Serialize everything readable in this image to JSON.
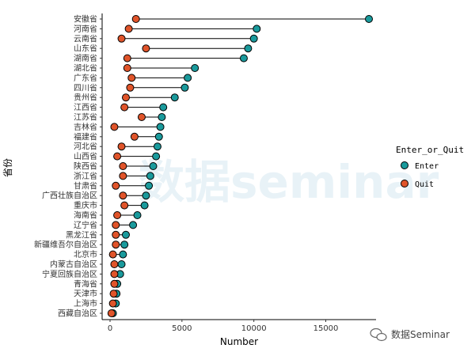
{
  "chart_data": {
    "type": "dumbbell",
    "xlabel": "Number",
    "ylabel": "省份",
    "xlim": [
      0,
      18400
    ],
    "xticks": [
      0,
      5000,
      10000,
      15000
    ],
    "grid": false,
    "legend": {
      "title": "Enter_or_Quit",
      "placement": "right",
      "entries": [
        {
          "name": "Enter",
          "color": "#1a9a9c"
        },
        {
          "name": "Quit",
          "color": "#e0542a"
        }
      ]
    },
    "categories": [
      "安徽省",
      "河南省",
      "云南省",
      "山东省",
      "湖南省",
      "湖北省",
      "广东省",
      "四川省",
      "贵州省",
      "江西省",
      "江苏省",
      "吉林省",
      "福建省",
      "河北省",
      "山西省",
      "陕西省",
      "浙江省",
      "甘肃省",
      "广西壮族自治区",
      "重庆市",
      "海南省",
      "辽宁省",
      "黑龙江省",
      "新疆维吾尔自治区",
      "北京市",
      "内蒙古自治区",
      "宁夏回族自治区",
      "青海省",
      "天津市",
      "上海市",
      "西藏自治区"
    ],
    "series": [
      {
        "name": "Enter",
        "values": [
          18000,
          10200,
          10000,
          9600,
          9300,
          5900,
          5400,
          5200,
          4500,
          3700,
          3600,
          3500,
          3400,
          3300,
          3200,
          3000,
          2800,
          2700,
          2500,
          2400,
          1900,
          1600,
          1100,
          1000,
          900,
          800,
          700,
          500,
          450,
          400,
          200
        ]
      },
      {
        "name": "Quit",
        "values": [
          1800,
          1300,
          800,
          2500,
          1200,
          1200,
          1500,
          1400,
          1100,
          1000,
          2200,
          300,
          1700,
          800,
          500,
          900,
          900,
          400,
          900,
          1000,
          500,
          400,
          400,
          400,
          200,
          300,
          300,
          300,
          250,
          200,
          100
        ]
      }
    ]
  },
  "watermark": {
    "background_text": "数据seminar",
    "footer_text": "数据Seminar"
  },
  "colors": {
    "enter": "#1a9a9c",
    "quit": "#e0542a",
    "segment": "#000000",
    "watermark": "#cfe3ee"
  }
}
